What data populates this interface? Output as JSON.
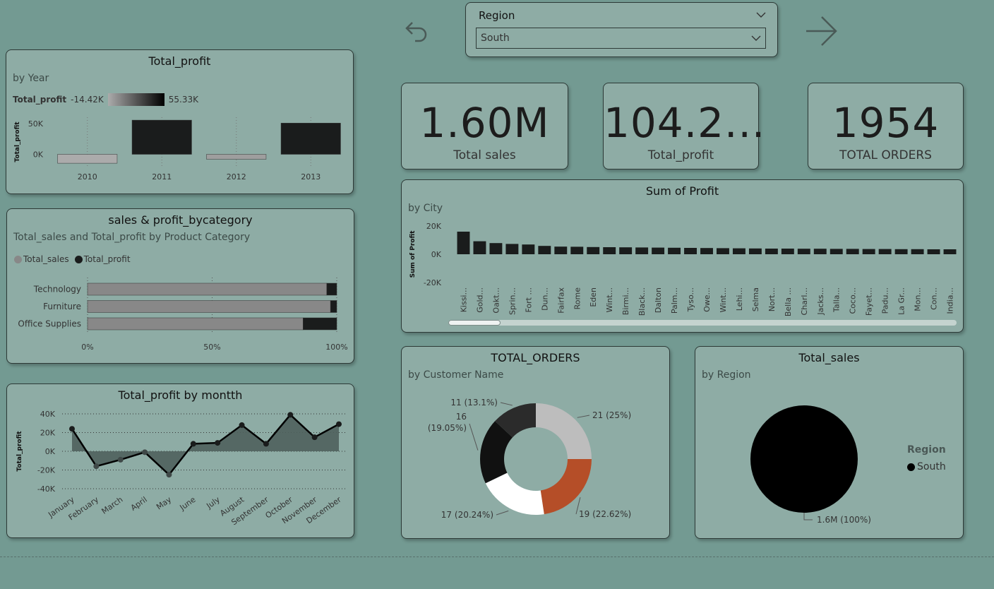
{
  "navigation": {
    "back_icon": "back-arrow-icon",
    "forward_icon": "forward-arrow-icon"
  },
  "region_slicer": {
    "title": "Region",
    "selected": "South"
  },
  "kpis": [
    {
      "value": "1.60M",
      "label": "Total sales"
    },
    {
      "value": "104.2...",
      "label": "Total_profit"
    },
    {
      "value": "1954",
      "label": "TOTAL ORDERS"
    }
  ],
  "colors": {
    "background": "#739a92",
    "card": "#8eaca5",
    "dark": "#1a1c1c",
    "gray": "#888888",
    "orange": "#b54e28"
  },
  "chart_data": [
    {
      "id": "profit_by_year",
      "type": "bar",
      "title": "Total_profit",
      "subtitle": "by Year",
      "legend": {
        "field": "Total_profit",
        "min_label": "-14.42K",
        "max_label": "55.33K"
      },
      "ylabel": "Total_profit",
      "y_ticks": [
        "50K",
        "0K"
      ],
      "categories": [
        "2010",
        "2011",
        "2012",
        "2013"
      ],
      "values": [
        -14420,
        55330,
        -8000,
        50500
      ],
      "ylim": [
        -20000,
        60000
      ]
    },
    {
      "id": "sales_profit_by_category",
      "type": "bar",
      "orientation": "horizontal-100%-stacked",
      "title": "sales & profit_bycategory",
      "subtitle": "Total_sales and Total_profit by Product Category",
      "categories": [
        "Technology",
        "Furniture",
        "Office Supplies"
      ],
      "series": [
        {
          "name": "Total_sales",
          "color": "#888888",
          "values": [
            96,
            97.5,
            86.5
          ]
        },
        {
          "name": "Total_profit",
          "color": "#1a1c1c",
          "values": [
            4,
            2.5,
            13.5
          ]
        }
      ],
      "x_ticks": [
        "0%",
        "50%",
        "100%"
      ]
    },
    {
      "id": "profit_by_month",
      "type": "area",
      "title": "Total_profit by montth",
      "ylabel": "Total_profit",
      "y_ticks": [
        "40K",
        "20K",
        "0K",
        "-20K",
        "-40K"
      ],
      "ylim": [
        -40000,
        40000
      ],
      "categories": [
        "January",
        "February",
        "March",
        "April",
        "May",
        "June",
        "July",
        "August",
        "September",
        "October",
        "November",
        "December"
      ],
      "values": [
        24000,
        -16000,
        -9000,
        -1000,
        -25000,
        8000,
        9000,
        28000,
        8000,
        39000,
        15000,
        29000
      ]
    },
    {
      "id": "profit_by_city",
      "type": "bar",
      "title": "Sum of Profit",
      "subtitle": "by City",
      "ylabel": "Sum of Profit",
      "y_ticks": [
        "20K",
        "0K",
        "-20K"
      ],
      "ylim": [
        -20000,
        20000
      ],
      "categories": [
        "Kissi...",
        "Gold...",
        "Oakt...",
        "Sprin...",
        "Fort ...",
        "Dun...",
        "Fairfax",
        "Rome",
        "Eden",
        "Wint...",
        "Birmi...",
        "Black...",
        "Dalton",
        "Palm...",
        "Tyso...",
        "Owe...",
        "Wint...",
        "Lehi...",
        "Selma",
        "Nort...",
        "Bella ...",
        "Charl...",
        "Jacks...",
        "Talla...",
        "Coco...",
        "Fayet...",
        "Padu...",
        "La Gr...",
        "Mon...",
        "Con...",
        "India..."
      ],
      "values": [
        16000,
        9200,
        7900,
        7300,
        6900,
        5900,
        5400,
        5300,
        5100,
        5000,
        4900,
        4800,
        4700,
        4600,
        4500,
        4400,
        4300,
        4200,
        4100,
        4000,
        4000,
        3900,
        3900,
        3800,
        3800,
        3700,
        3700,
        3600,
        3600,
        3500,
        3500
      ]
    },
    {
      "id": "orders_by_customer",
      "type": "pie",
      "style": "donut",
      "title": "TOTAL_ORDERS",
      "subtitle": "by Customer Name",
      "slices": [
        {
          "value": 21,
          "label": "21 (25%)",
          "color": "#bdbdbd"
        },
        {
          "value": 19,
          "label": "19 (22.62%)",
          "color": "#b54e28"
        },
        {
          "value": 17,
          "label": "17 (20.24%)",
          "color": "#ffffff"
        },
        {
          "value": 16,
          "label": "16 (19.05%)",
          "color": "#111111"
        },
        {
          "value": 11,
          "label": "11 (13.1%)",
          "color": "#2b2b2b"
        }
      ]
    },
    {
      "id": "sales_by_region",
      "type": "pie",
      "title": "Total_sales",
      "subtitle": "by Region",
      "legend_title": "Region",
      "slices": [
        {
          "name": "South",
          "value": 1600000,
          "label": "1.6M (100%)",
          "color": "#000000"
        }
      ]
    }
  ]
}
